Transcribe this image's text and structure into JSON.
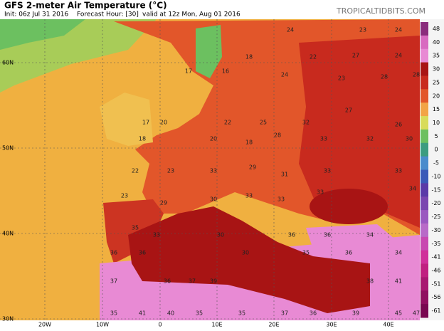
{
  "header": {
    "title": "GFS 2-meter Air Temperature (°C)",
    "init": "Init: 06z Jul 31 2016",
    "forecast": "Forecast Hour: [30]",
    "valid": "valid at 12z Mon, Aug 01 2016",
    "credit": "TROPICALTIDBITS.COM"
  },
  "lat_labels": [
    "60N",
    "50N",
    "40N",
    "30N"
  ],
  "lon_labels": [
    "20W",
    "10W",
    "0",
    "10E",
    "20E",
    "30E",
    "40E"
  ],
  "colorbar": {
    "ticks": [
      48,
      40,
      35,
      30,
      25,
      20,
      15,
      10,
      5,
      0,
      -5,
      -10,
      -15,
      -20,
      -25,
      -30,
      -35,
      -41,
      -46,
      -51,
      -56,
      -61
    ],
    "colors": [
      "#8a2c7c",
      "#d86ac0",
      "#e88ad4",
      "#a81414",
      "#c82a1e",
      "#e2562a",
      "#f2a446",
      "#d8dc5a",
      "#6cc060",
      "#3c9c80",
      "#4a8ccc",
      "#3a5ab8",
      "#5a3aa8",
      "#7a46b0",
      "#9a58c0",
      "#b86ac8",
      "#c848b0",
      "#d0309a",
      "#c02080",
      "#a81870",
      "#901060",
      "#780850"
    ]
  },
  "map_labels": [
    24,
    23,
    24,
    18,
    22,
    27,
    24,
    28,
    17,
    16,
    24,
    23,
    28,
    17,
    20,
    22,
    25,
    32,
    27,
    26,
    18,
    20,
    18,
    28,
    33,
    32,
    30,
    22,
    23,
    33,
    29,
    31,
    33,
    33,
    23,
    29,
    30,
    33,
    33,
    33,
    34,
    35,
    33,
    30,
    36,
    36,
    34,
    36,
    36,
    30,
    35,
    36,
    34,
    37,
    36,
    37,
    39,
    38,
    41,
    35,
    41,
    40,
    35,
    35,
    37,
    36,
    39,
    45,
    47
  ]
}
